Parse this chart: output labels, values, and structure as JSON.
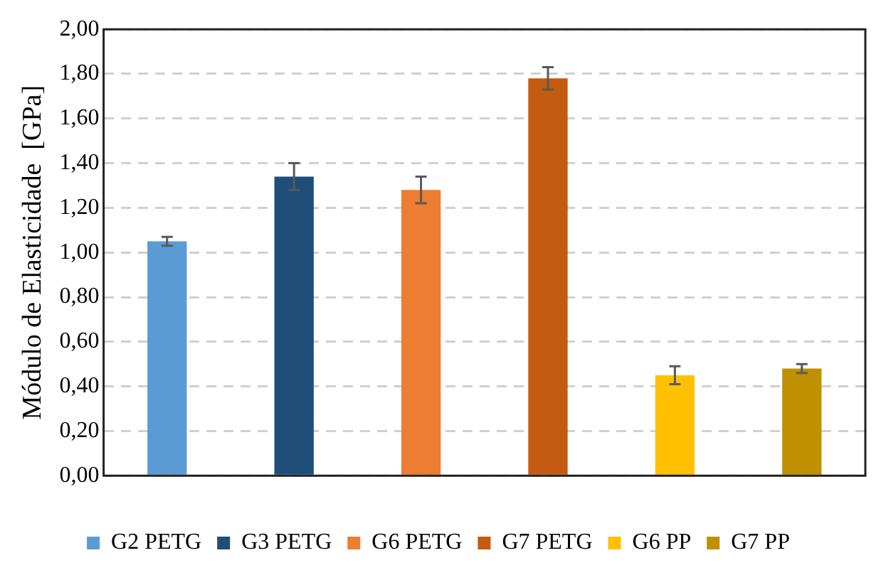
{
  "chart_data": {
    "type": "bar",
    "ylabel": "Módulo de Elasticidade  [GPa]",
    "categories": [
      null
    ],
    "series": [
      {
        "name": "G2 PETG",
        "color": "#5b9bd5",
        "values": [
          1.05
        ],
        "errors": [
          0.02
        ]
      },
      {
        "name": "G3 PETG",
        "color": "#1f4e79",
        "values": [
          1.34
        ],
        "errors": [
          0.06
        ]
      },
      {
        "name": "G6 PETG",
        "color": "#ed7d31",
        "values": [
          1.28
        ],
        "errors": [
          0.06
        ]
      },
      {
        "name": "G7 PETG",
        "color": "#c55a11",
        "values": [
          1.78
        ],
        "errors": [
          0.05
        ]
      },
      {
        "name": "G6 PP",
        "color": "#ffc000",
        "values": [
          0.45
        ],
        "errors": [
          0.04
        ]
      },
      {
        "name": "G7 PP",
        "color": "#bf9000",
        "values": [
          0.48
        ],
        "errors": [
          0.02
        ]
      }
    ],
    "ylim": [
      0,
      2
    ],
    "yticks": [
      {
        "value": 0,
        "label": "0,00"
      },
      {
        "value": 0.2,
        "label": "0,20"
      },
      {
        "value": 0.4,
        "label": "0,40"
      },
      {
        "value": 0.6,
        "label": "0,60"
      },
      {
        "value": 0.8,
        "label": "0,80"
      },
      {
        "value": 1,
        "label": "1,00"
      },
      {
        "value": 1.2,
        "label": "1,20"
      },
      {
        "value": 1.4,
        "label": "1,40"
      },
      {
        "value": 1.6,
        "label": "1,60"
      },
      {
        "value": 1.8,
        "label": "1,80"
      },
      {
        "value": 2,
        "label": "2,00"
      }
    ],
    "grid": "y",
    "legend": "bottom"
  }
}
